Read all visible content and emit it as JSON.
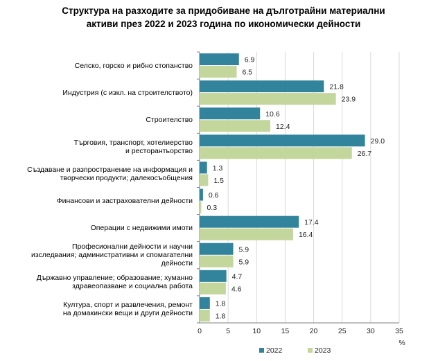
{
  "title_line1": "Структура на разходите за придобиване на дълготрайни материални",
  "title_line2": "активи през 2022 и 2023 година по икономически дейности",
  "chart_data": {
    "type": "bar",
    "orientation": "horizontal",
    "title": "Структура на разходите за придобиване на дълготрайни материални активи през 2022 и 2023 година по икономически дейности",
    "categories": [
      "Селско, горско и рибно стопанство",
      "Индустрия (с изкл. на строителството)",
      "Строителство",
      "Търговия, транспорт, хотелиерство и ресторантьорство",
      "Създаване и разпространение на информация и творчески продукти; далекосъобщения",
      "Финансови и застрахователни дейности",
      "Операции с недвижими имоти",
      "Професионални дейности и научни изследвания; административни и спомагателни дейности",
      "Държавно управление; образование; хуманно здравеопазване и социална работа",
      "Култура, спорт и развлечения, ремонт на домакински вещи и други дейности"
    ],
    "category_lines": [
      [
        "Селско, горско и рибно стопанство"
      ],
      [
        "Индустрия (с изкл. на строителството)"
      ],
      [
        "Строителство"
      ],
      [
        "Търговия, транспорт, хотелиерство",
        "и ресторантьорство"
      ],
      [
        "Създаване и разпространение на информация и",
        "творчески продукти; далекосъобщения"
      ],
      [
        "Финансови и застрахователни дейности"
      ],
      [
        "Операции с недвижими имоти"
      ],
      [
        "Професионални дейности и научни",
        "изследвания; административни и спомагателни",
        "дейности"
      ],
      [
        "Държавно управление; образование; хуманно",
        "здравеопазване и социална работа"
      ],
      [
        "Култура, спорт и развлечения, ремонт",
        "на домакински вещи и други дейности"
      ]
    ],
    "series": [
      {
        "name": "2022",
        "color": "#31849b",
        "values": [
          6.9,
          21.8,
          10.6,
          29.0,
          1.3,
          0.6,
          17.4,
          5.9,
          4.7,
          1.8
        ]
      },
      {
        "name": "2023",
        "color": "#c3d69b",
        "values": [
          6.5,
          23.9,
          12.4,
          26.7,
          1.5,
          0.3,
          16.4,
          5.9,
          4.6,
          1.8
        ]
      }
    ],
    "xlim": [
      0,
      35
    ],
    "xticks": [
      0,
      5,
      10,
      15,
      20,
      25,
      30,
      35
    ],
    "xunit": "%",
    "grid": true,
    "legend_position": "bottom"
  }
}
